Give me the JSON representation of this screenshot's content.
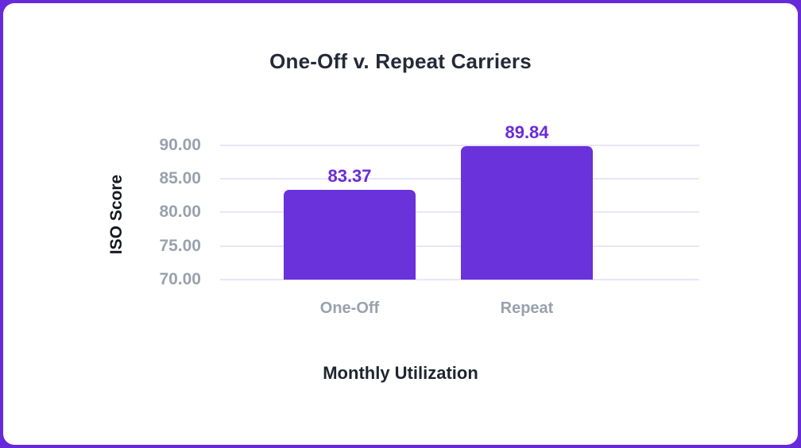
{
  "window": {
    "background_color": "#672ad9",
    "card_color": "#ffffff"
  },
  "chart_data": {
    "type": "bar",
    "title": "One-Off v. Repeat Carriers",
    "xlabel": "Monthly Utilization",
    "ylabel": "ISO Score",
    "categories": [
      "One-Off",
      "Repeat"
    ],
    "values": [
      83.37,
      89.84
    ],
    "value_labels": [
      "83.37",
      "89.84"
    ],
    "ylim": [
      70,
      90
    ],
    "yticks": [
      70,
      75,
      80,
      85,
      90
    ],
    "ytick_labels": [
      "70.00",
      "75.00",
      "80.00",
      "85.00",
      "90.00"
    ],
    "grid": true,
    "legend": false,
    "colors": {
      "bar": "#6932db",
      "value_label": "#6b2bd9",
      "gridline": "#ebe5f8",
      "tick_label": "#9aa1ae",
      "category_label": "#9aa1ae",
      "title": "#242a37",
      "axis_label": "#1f2530",
      "y_axis_label": "#16191f"
    }
  }
}
